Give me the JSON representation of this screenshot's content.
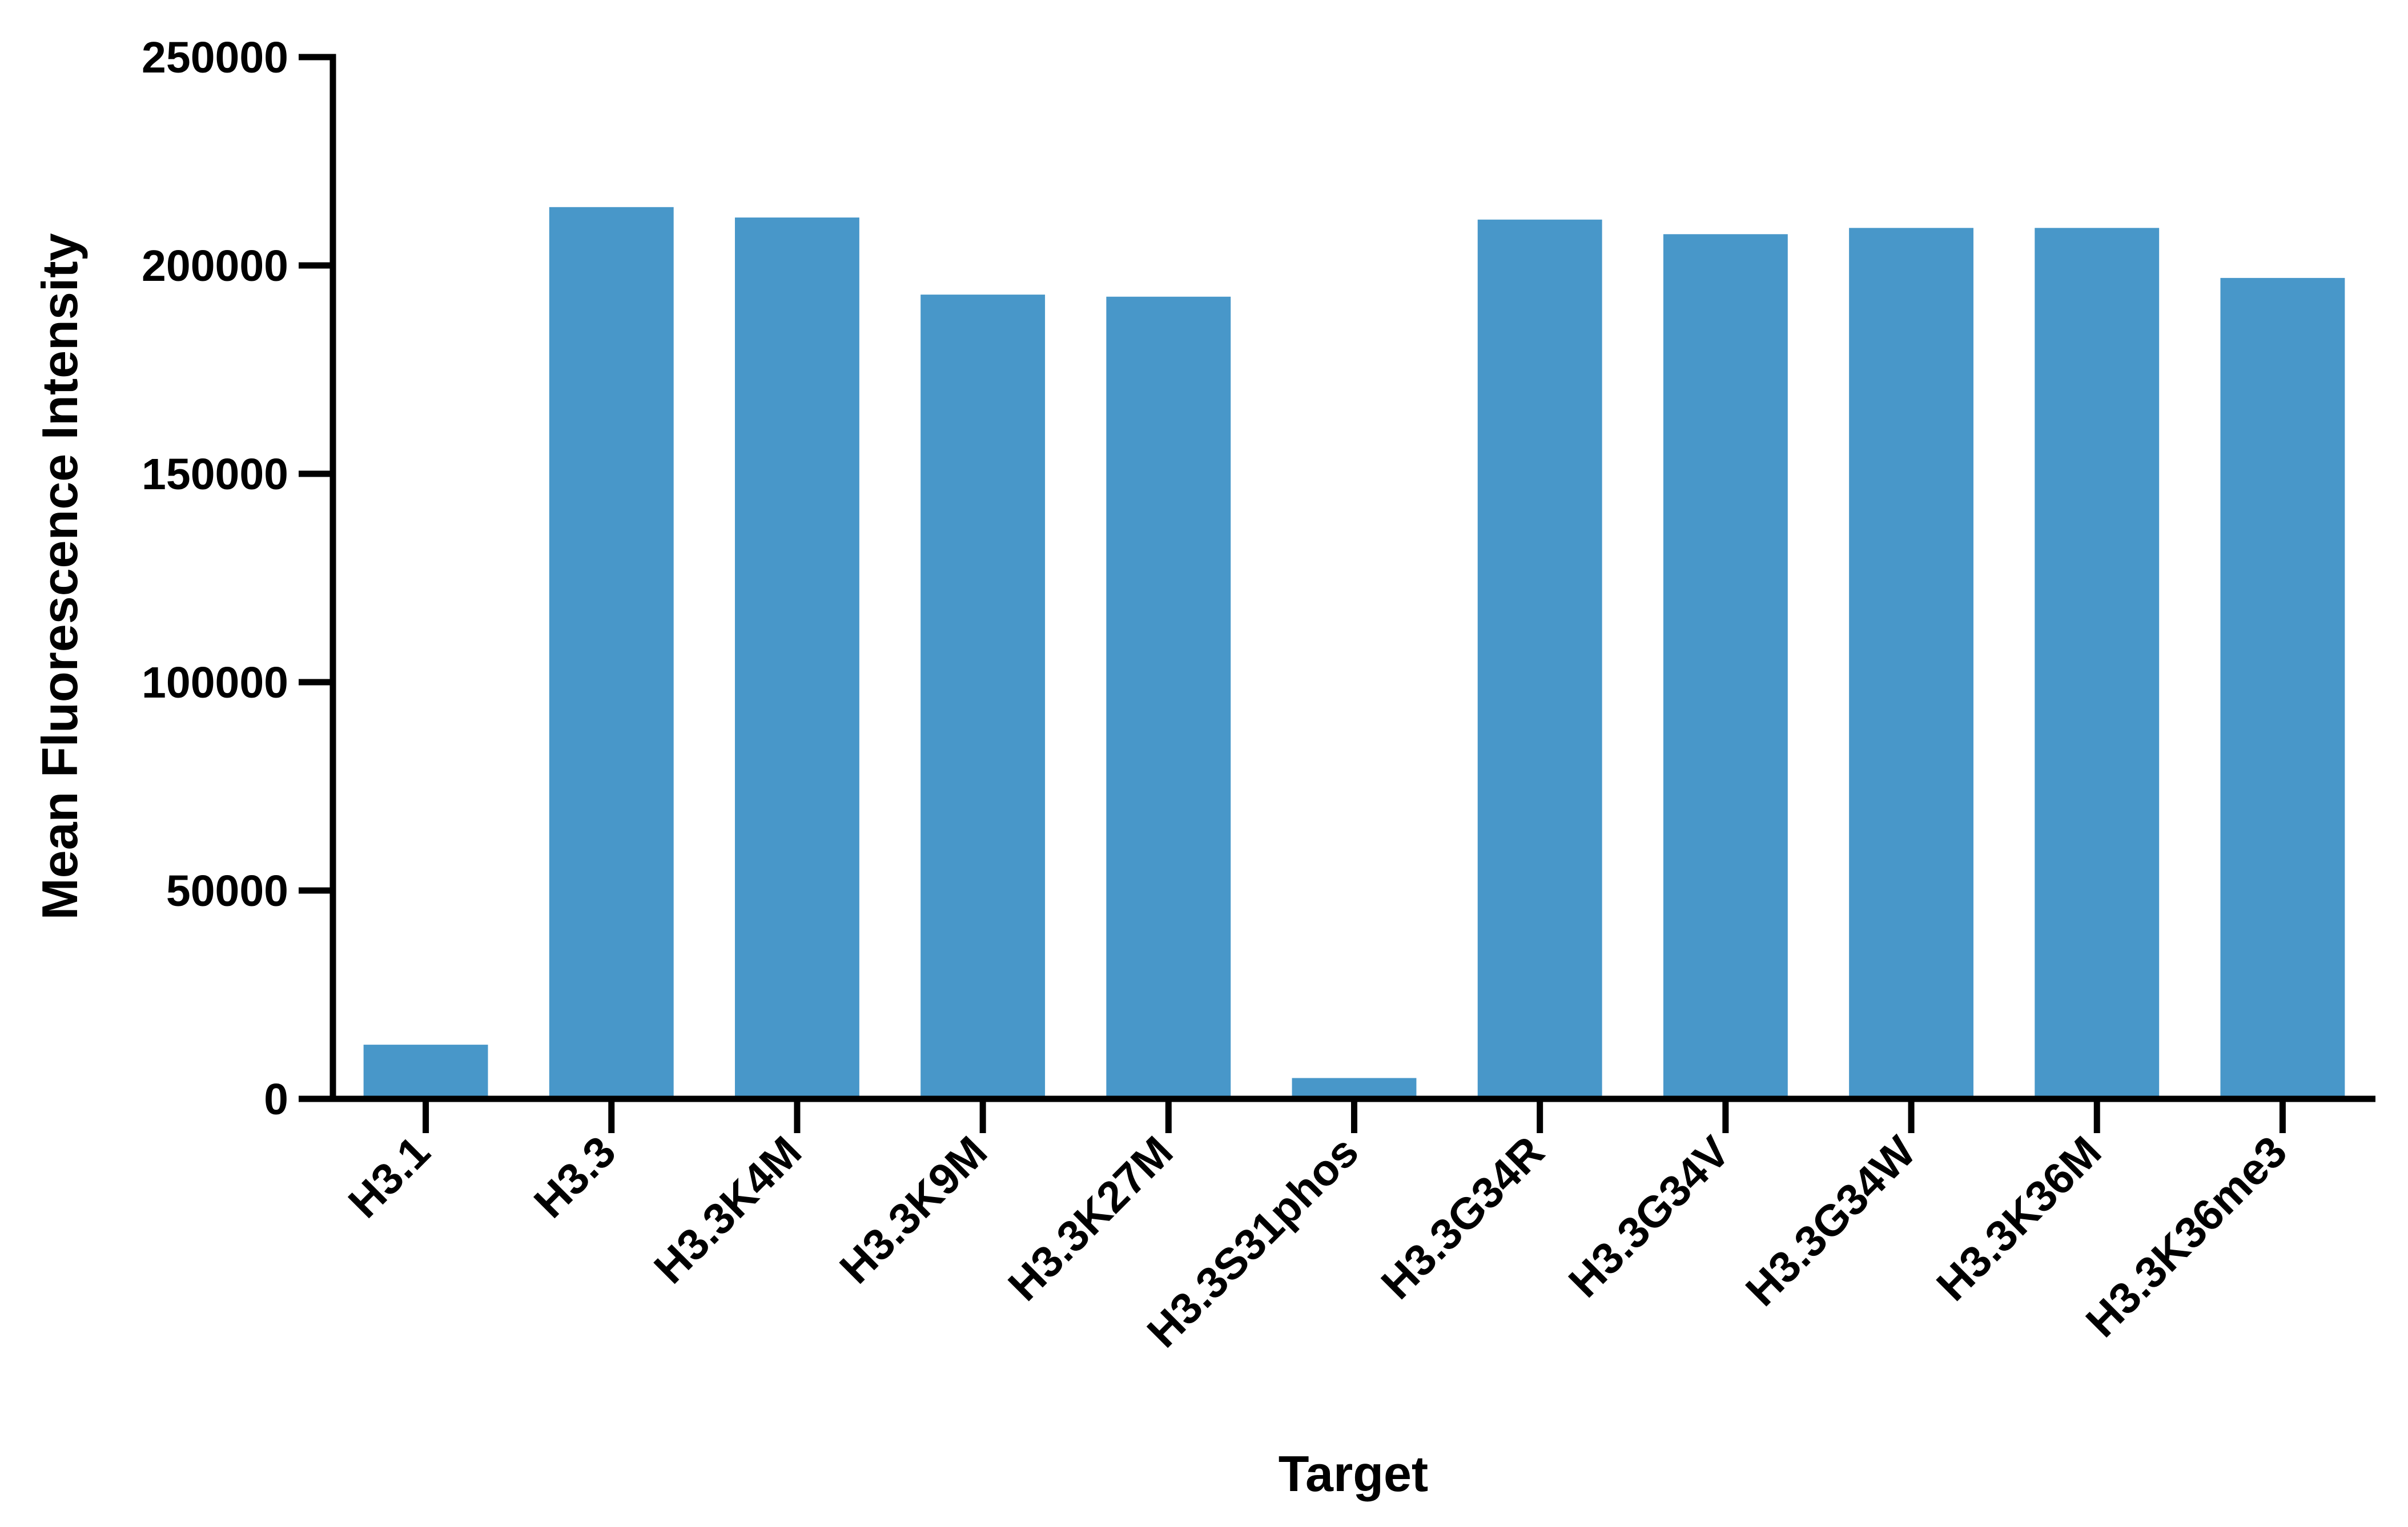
{
  "chart_data": {
    "type": "bar",
    "title": "",
    "xlabel": "Target",
    "ylabel": "Mean Fluorescence Intensity",
    "categories": [
      "H3.1",
      "H3.3",
      "H3.3K4M",
      "H3.3K9M",
      "H3.3K27M",
      "H3.3S31phos",
      "H3.3G34R",
      "H3.3G34V",
      "H3.3G34W",
      "H3.3K36M",
      "H3.3K36me3"
    ],
    "values": [
      13000,
      214000,
      211500,
      193000,
      192500,
      5000,
      211000,
      207500,
      209000,
      209000,
      197000
    ],
    "ylim": [
      0,
      250000
    ],
    "yticks": [
      0,
      50000,
      100000,
      150000,
      200000,
      250000
    ],
    "ytick_labels": [
      "0",
      "50000",
      "100000",
      "150000",
      "200000",
      "250000"
    ],
    "grid": false,
    "bar_color": "#4897c9",
    "axis_color": "#000000"
  }
}
